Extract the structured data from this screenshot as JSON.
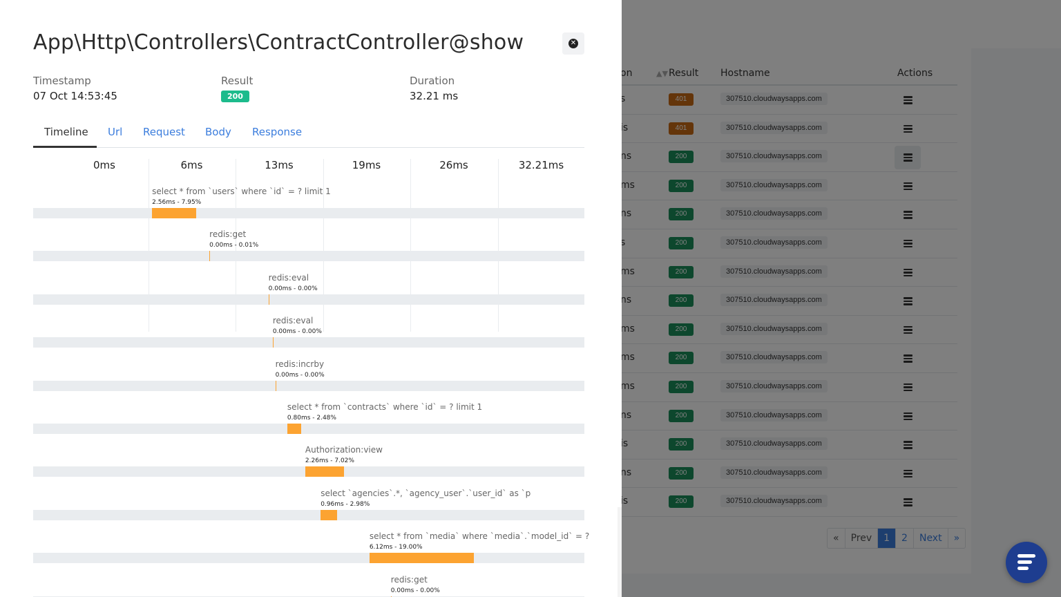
{
  "background_table": {
    "headers": {
      "duration_partial": "on",
      "result": "Result",
      "hostname": "Hostname",
      "actions": "Actions"
    },
    "rows": [
      {
        "duration_partial": "s",
        "status": "401",
        "status_color": "#c96a14",
        "host": "307510.cloudwaysapps.com"
      },
      {
        "duration_partial": "is",
        "status": "401",
        "status_color": "#c96a14",
        "host": "307510.cloudwaysapps.com"
      },
      {
        "duration_partial": "ns",
        "status": "200",
        "status_color": "#1a8f5a",
        "host": "307510.cloudwaysapps.com"
      },
      {
        "duration_partial": "ms",
        "status": "200",
        "status_color": "#1a8f5a",
        "host": "307510.cloudwaysapps.com"
      },
      {
        "duration_partial": "ns",
        "status": "200",
        "status_color": "#1a8f5a",
        "host": "307510.cloudwaysapps.com"
      },
      {
        "duration_partial": "s",
        "status": "200",
        "status_color": "#1a8f5a",
        "host": "307510.cloudwaysapps.com"
      },
      {
        "duration_partial": "ms",
        "status": "200",
        "status_color": "#1a8f5a",
        "host": "307510.cloudwaysapps.com"
      },
      {
        "duration_partial": "ns",
        "status": "200",
        "status_color": "#1a8f5a",
        "host": "307510.cloudwaysapps.com"
      },
      {
        "duration_partial": "ms",
        "status": "200",
        "status_color": "#1a8f5a",
        "host": "307510.cloudwaysapps.com"
      },
      {
        "duration_partial": "ms",
        "status": "200",
        "status_color": "#1a8f5a",
        "host": "307510.cloudwaysapps.com"
      },
      {
        "duration_partial": "ms",
        "status": "200",
        "status_color": "#1a8f5a",
        "host": "307510.cloudwaysapps.com"
      },
      {
        "duration_partial": "ns",
        "status": "200",
        "status_color": "#1a8f5a",
        "host": "307510.cloudwaysapps.com"
      },
      {
        "duration_partial": "is",
        "status": "200",
        "status_color": "#1a8f5a",
        "host": "307510.cloudwaysapps.com"
      },
      {
        "duration_partial": "ns",
        "status": "200",
        "status_color": "#1a8f5a",
        "host": "307510.cloudwaysapps.com"
      },
      {
        "duration_partial": "is",
        "status": "200",
        "status_color": "#1a8f5a",
        "host": "307510.cloudwaysapps.com"
      }
    ],
    "pagination": {
      "first": "«",
      "prev": "Prev",
      "page1": "1",
      "page2": "2",
      "next": "Next",
      "last": "»"
    }
  },
  "panel": {
    "title": "App\\Http\\Controllers\\ContractController@show",
    "timestamp_label": "Timestamp",
    "timestamp_value": "07 Oct 14:53:45",
    "result_label": "Result",
    "result_value": "200",
    "duration_label": "Duration",
    "duration_value": "32.21 ms",
    "tabs": [
      "Timeline",
      "Url",
      "Request",
      "Body",
      "Response"
    ],
    "active_tab": "Timeline"
  },
  "timeline": {
    "axis": [
      "0ms",
      "6ms",
      "13ms",
      "19ms",
      "26ms",
      "32.21ms"
    ],
    "total_ms": 32.21,
    "spans": [
      {
        "label": "select * from `users` where `id` = ? limit 1",
        "time": "2.56ms - 7.95%",
        "start_ms": 6.95,
        "dur_ms": 2.56
      },
      {
        "label": "redis:get",
        "time": "0.00ms - 0.01%",
        "start_ms": 10.3,
        "dur_ms": 0.0
      },
      {
        "label": "redis:eval",
        "time": "0.00ms - 0.00%",
        "start_ms": 13.75,
        "dur_ms": 0.0
      },
      {
        "label": "redis:eval",
        "time": "0.00ms - 0.00%",
        "start_ms": 14.0,
        "dur_ms": 0.0
      },
      {
        "label": "redis:incrby",
        "time": "0.00ms - 0.00%",
        "start_ms": 14.15,
        "dur_ms": 0.0
      },
      {
        "label": "select * from `contracts` where `id` = ? limit 1",
        "time": "0.80ms - 2.48%",
        "start_ms": 14.85,
        "dur_ms": 0.8
      },
      {
        "label": "Authorization:view",
        "time": "2.26ms - 7.02%",
        "start_ms": 15.9,
        "dur_ms": 2.26
      },
      {
        "label": "select `agencies`.*, `agency_user`.`user_id` as `p",
        "time": "0.96ms - 2.98%",
        "start_ms": 16.8,
        "dur_ms": 0.96
      },
      {
        "label": "select * from `media` where `media`.`model_id` = ?",
        "time": "6.12ms - 19.00%",
        "start_ms": 19.65,
        "dur_ms": 6.12
      },
      {
        "label": "redis:get",
        "time": "0.00ms - 0.00%",
        "start_ms": 20.9,
        "dur_ms": 0.0
      }
    ],
    "bar_color": "#fca331",
    "track_color": "#e9ecef"
  }
}
